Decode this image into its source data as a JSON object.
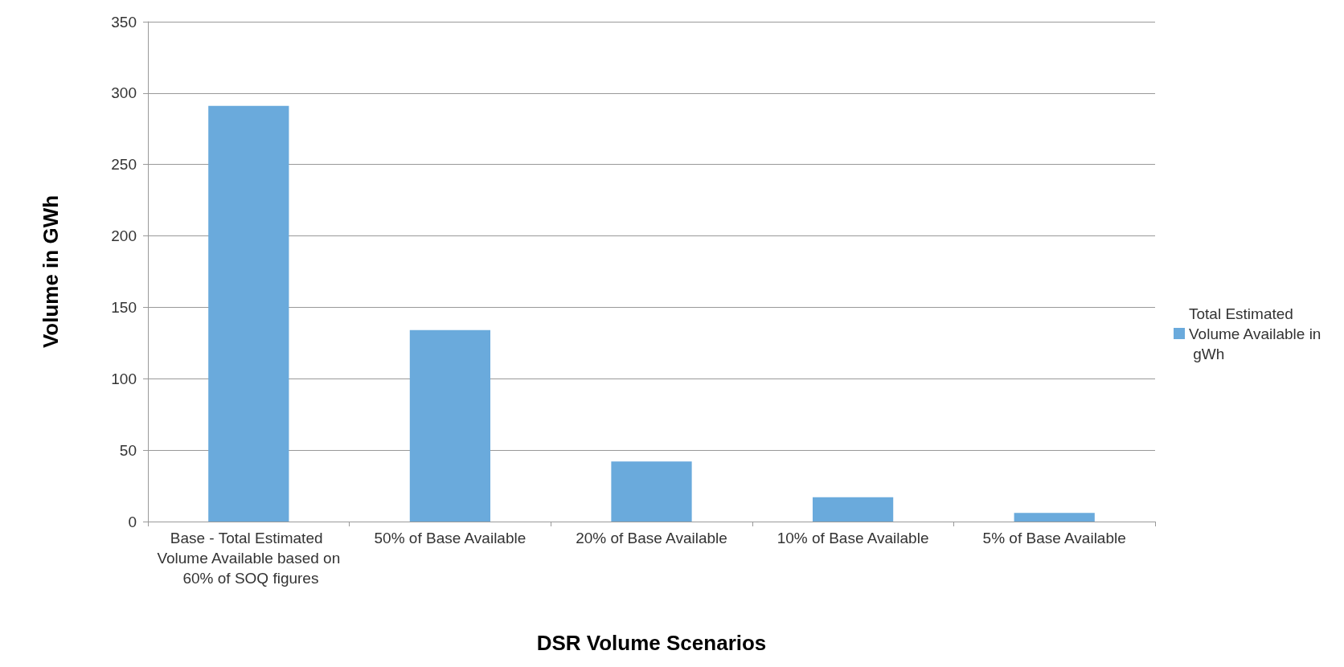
{
  "chart_data": {
    "type": "bar",
    "xlabel": "DSR Volume Scenarios",
    "ylabel": "Volume in GWh",
    "categories": [
      "Base - Total Estimated Volume Available based on 60% of SOQ figures",
      "50% of Base Available",
      "20% of Base Available",
      "10% of Base Available",
      "5% of Base Available"
    ],
    "series": [
      {
        "name": "Total Estimated Volume Available in gWh",
        "color": "#6aaadc",
        "values": [
          291,
          134,
          42,
          17,
          6
        ]
      }
    ],
    "ylim": [
      0,
      350
    ],
    "yticks": [
      0,
      50,
      100,
      150,
      200,
      250,
      300,
      350
    ],
    "grid": "y",
    "legend": "right"
  }
}
